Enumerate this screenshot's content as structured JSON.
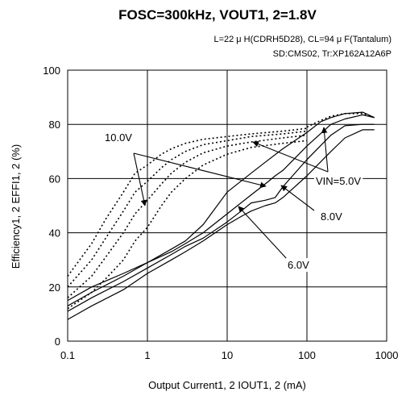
{
  "chart_data": {
    "type": "line",
    "title": "FOSC=300kHz, VOUT1, 2=1.8V",
    "notes": [
      "L=22 μ H(CDRH5D28), CL=94 μ F(Tantalum)",
      "SD:CMS02, Tr:XP162A12A6P"
    ],
    "xlabel": "Output Current1, 2  IOUT1, 2 (mA)",
    "ylabel": "Efficiency1, 2 EFFI1, 2  (%)",
    "x_scale": "log",
    "xlim": [
      0.1,
      1000
    ],
    "ylim": [
      0,
      100
    ],
    "x_ticks": [
      "0.1",
      "1",
      "10",
      "100",
      "1000"
    ],
    "y_ticks": [
      "0",
      "20",
      "40",
      "60",
      "80",
      "100"
    ],
    "grid": true,
    "annotations": [
      "10.0V",
      "VIN=5.0V",
      "8.0V",
      "6.0V"
    ],
    "series": [
      {
        "style": "dotted",
        "x": [
          0.1,
          0.2,
          0.3,
          0.5,
          0.7,
          1,
          1.5,
          2,
          3,
          5,
          10,
          20,
          50,
          100
        ],
        "y": [
          24,
          36,
          45,
          55,
          62,
          65,
          69,
          71,
          73,
          74.5,
          75.5,
          76.5,
          77.5,
          78.5
        ]
      },
      {
        "style": "dotted",
        "x": [
          0.1,
          0.2,
          0.3,
          0.5,
          0.7,
          1,
          1.5,
          2,
          3,
          5,
          10,
          20,
          50,
          100
        ],
        "y": [
          20,
          30,
          38,
          48,
          55,
          59,
          64,
          67,
          70,
          72.5,
          74,
          75.5,
          76.5,
          77.5
        ]
      },
      {
        "style": "dotted",
        "x": [
          0.1,
          0.2,
          0.3,
          0.5,
          0.7,
          1,
          1.5,
          2,
          3,
          5,
          10,
          20,
          50,
          100
        ],
        "y": [
          16,
          24,
          31,
          40,
          47,
          52,
          58,
          62,
          66,
          69.5,
          72,
          73.5,
          75,
          76
        ]
      },
      {
        "style": "dotted",
        "x": [
          0.1,
          0.2,
          0.3,
          0.5,
          0.7,
          1,
          1.5,
          2,
          3,
          5,
          10,
          20,
          50,
          100
        ],
        "y": [
          12,
          18,
          23,
          30,
          37,
          42,
          50,
          55,
          60,
          65,
          69,
          71.5,
          73,
          74
        ]
      },
      {
        "style": "dotted",
        "x": [
          100,
          150,
          200,
          300,
          500,
          700
        ],
        "y": [
          79,
          81.5,
          83,
          84,
          84,
          82.5
        ]
      },
      {
        "style": "solid",
        "x": [
          0.1,
          0.2,
          0.5,
          1,
          2,
          3,
          5,
          10,
          20,
          30,
          50,
          100,
          150,
          200,
          300,
          500,
          700
        ],
        "y": [
          15,
          20,
          25,
          29,
          34,
          37,
          43,
          55,
          62,
          66,
          71,
          77,
          81,
          82.5,
          84,
          84.5,
          82.5
        ]
      },
      {
        "style": "solid",
        "x": [
          0.1,
          0.2,
          0.5,
          1,
          2,
          3,
          5,
          10,
          20,
          30,
          40,
          50,
          100,
          200,
          300,
          500,
          700
        ],
        "y": [
          13,
          18,
          24,
          29,
          33,
          36,
          40,
          47,
          54,
          58,
          61,
          63,
          72,
          80,
          82,
          83.5,
          82.5
        ]
      },
      {
        "style": "solid",
        "x": [
          0.1,
          0.2,
          0.5,
          1,
          2,
          3,
          5,
          10,
          15,
          20,
          30,
          40,
          50,
          100,
          200,
          300,
          500,
          700
        ],
        "y": [
          11,
          16,
          22,
          27,
          32,
          35,
          38,
          44,
          48,
          51,
          52,
          53,
          57,
          67,
          76,
          79.5,
          80,
          80
        ]
      },
      {
        "style": "solid",
        "x": [
          0.1,
          0.2,
          0.5,
          1,
          2,
          3,
          5,
          10,
          15,
          20,
          30,
          40,
          50,
          100,
          200,
          300,
          500,
          700
        ],
        "y": [
          8,
          13,
          19,
          25,
          30,
          33,
          37,
          43,
          46,
          48,
          50,
          51,
          53,
          61,
          70,
          75,
          78,
          78
        ]
      }
    ]
  }
}
